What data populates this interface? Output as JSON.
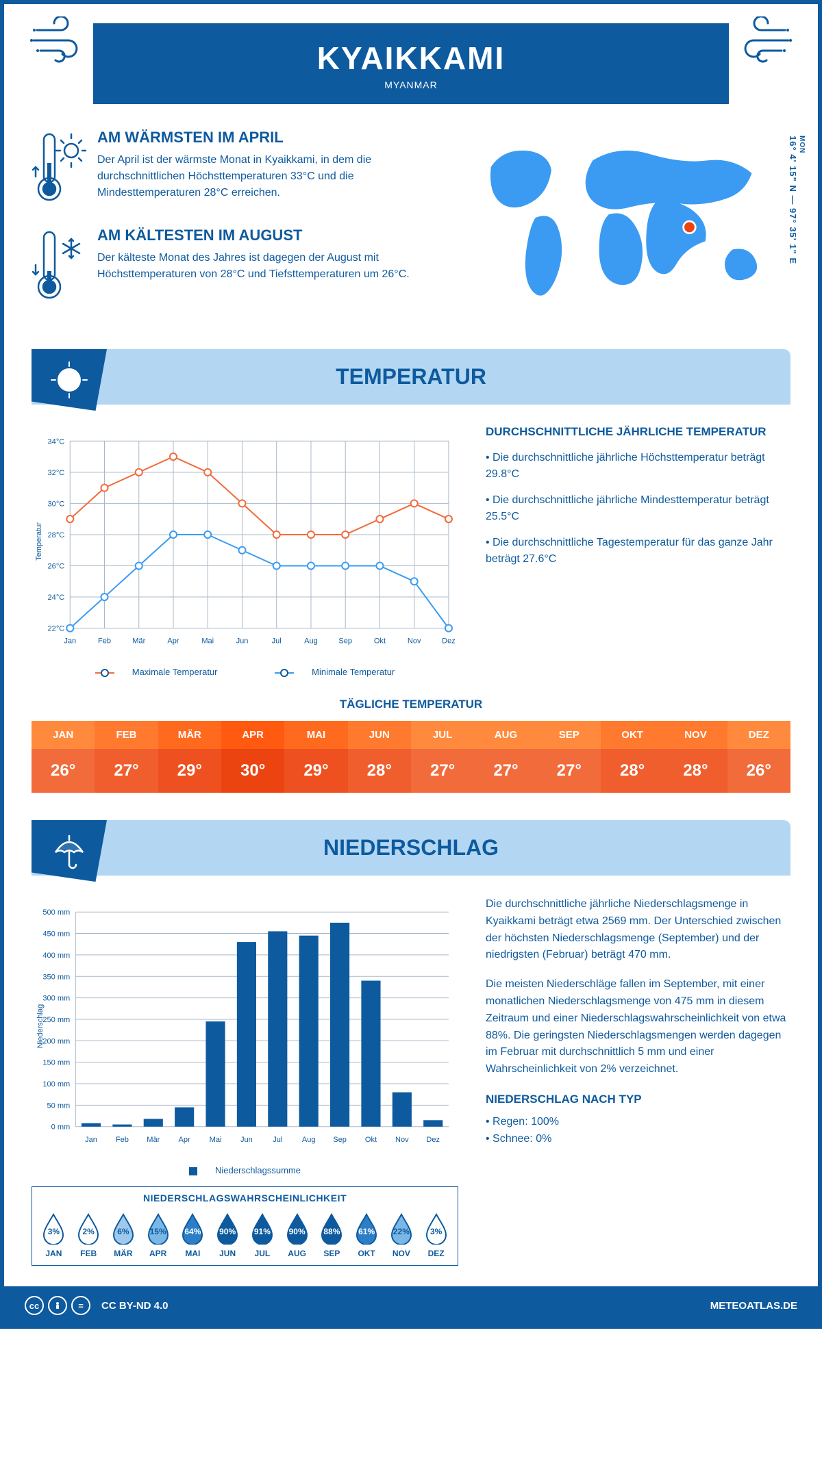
{
  "colors": {
    "brand": "#0e5a9e",
    "lightBlue": "#b3d7f2",
    "midBlue": "#3b9bf2",
    "orange": "#f26b3b",
    "white": "#ffffff",
    "grid": "#a9b8c9"
  },
  "header": {
    "title": "KYAIKKAMI",
    "subtitle": "MYANMAR"
  },
  "coords": {
    "text": "16° 4' 15\" N — 97° 35' 1\" E",
    "label": "MON"
  },
  "facts": {
    "warm": {
      "title": "AM WÄRMSTEN IM APRIL",
      "body": "Der April ist der wärmste Monat in Kyaikkami, in dem die durchschnittlichen Höchsttemperaturen 33°C und die Mindesttemperaturen 28°C erreichen."
    },
    "cold": {
      "title": "AM KÄLTESTEN IM AUGUST",
      "body": "Der kälteste Monat des Jahres ist dagegen der August mit Höchsttemperaturen von 28°C und Tiefsttemperaturen um 26°C."
    }
  },
  "temperature": {
    "sectionTitle": "TEMPERATUR",
    "descTitle": "DURCHSCHNITTLICHE JÄHRLICHE TEMPERATUR",
    "desc1": "• Die durchschnittliche jährliche Höchsttemperatur beträgt 29.8°C",
    "desc2": "• Die durchschnittliche jährliche Mindesttemperatur beträgt 25.5°C",
    "desc3": "• Die durchschnittliche Tagestemperatur für das ganze Jahr beträgt 27.6°C",
    "chart": {
      "months": [
        "Jan",
        "Feb",
        "Mär",
        "Apr",
        "Mai",
        "Jun",
        "Jul",
        "Aug",
        "Sep",
        "Okt",
        "Nov",
        "Dez"
      ],
      "max": [
        29,
        31,
        32,
        33,
        32,
        30,
        28,
        28,
        28,
        29,
        30,
        29
      ],
      "min": [
        22,
        24,
        26,
        28,
        28,
        27,
        26,
        26,
        26,
        26,
        25,
        22
      ],
      "ylim": [
        22,
        34
      ],
      "ystep": 2,
      "ylabel": "Temperatur",
      "maxLabel": "Maximale Temperatur",
      "minLabel": "Minimale Temperatur",
      "maxColor": "#f26b3b",
      "minColor": "#3b9bf2",
      "gridColor": "#a9b8c9",
      "textColor": "#0e5a9e",
      "lineWidth": 2,
      "markerSize": 5
    },
    "dailyTitle": "TÄGLICHE TEMPERATUR",
    "daily": {
      "months": [
        "JAN",
        "FEB",
        "MÄR",
        "APR",
        "MAI",
        "JUN",
        "JUL",
        "AUG",
        "SEP",
        "OKT",
        "NOV",
        "DEZ"
      ],
      "values": [
        "26°",
        "27°",
        "29°",
        "30°",
        "29°",
        "28°",
        "27°",
        "27°",
        "27°",
        "28°",
        "28°",
        "26°"
      ],
      "headerColors": [
        "#ff8a3d",
        "#ff7a2e",
        "#ff6a1f",
        "#ff5a10",
        "#ff6a1f",
        "#ff7a2e",
        "#ff8a3d",
        "#ff8a3d",
        "#ff8a3d",
        "#ff7a2e",
        "#ff7a2e",
        "#ff8a3d"
      ],
      "valueColors": [
        "#f26b3b",
        "#f05e2d",
        "#ee511f",
        "#ec4411",
        "#ee511f",
        "#f05e2d",
        "#f26b3b",
        "#f26b3b",
        "#f26b3b",
        "#f05e2d",
        "#f05e2d",
        "#f26b3b"
      ]
    }
  },
  "precipitation": {
    "sectionTitle": "NIEDERSCHLAG",
    "chart": {
      "months": [
        "Jan",
        "Feb",
        "Mär",
        "Apr",
        "Mai",
        "Jun",
        "Jul",
        "Aug",
        "Sep",
        "Okt",
        "Nov",
        "Dez"
      ],
      "values": [
        8,
        5,
        18,
        45,
        245,
        430,
        455,
        445,
        475,
        340,
        80,
        15
      ],
      "ylim": [
        0,
        500
      ],
      "ystep": 50,
      "ylabel": "Niederschlag",
      "barColor": "#0e5a9e",
      "gridColor": "#a9b8c9",
      "textColor": "#0e5a9e",
      "unitSuffix": " mm",
      "legendLabel": "Niederschlagssumme",
      "barWidth": 0.62
    },
    "desc1": "Die durchschnittliche jährliche Niederschlagsmenge in Kyaikkami beträgt etwa 2569 mm. Der Unterschied zwischen der höchsten Niederschlagsmenge (September) und der niedrigsten (Februar) beträgt 470 mm.",
    "desc2": "Die meisten Niederschläge fallen im September, mit einer monatlichen Niederschlagsmenge von 475 mm in diesem Zeitraum und einer Niederschlagswahrscheinlichkeit von etwa 88%. Die geringsten Niederschlagsmengen werden dagegen im Februar mit durchschnittlich 5 mm und einer Wahrscheinlichkeit von 2% verzeichnet.",
    "typeTitle": "NIEDERSCHLAG NACH TYP",
    "typeRain": "• Regen: 100%",
    "typeSnow": "• Schnee: 0%",
    "probTitle": "NIEDERSCHLAGSWAHRSCHEINLICHKEIT",
    "probability": {
      "months": [
        "JAN",
        "FEB",
        "MÄR",
        "APR",
        "MAI",
        "JUN",
        "JUL",
        "AUG",
        "SEP",
        "OKT",
        "NOV",
        "DEZ"
      ],
      "values": [
        "3%",
        "2%",
        "6%",
        "15%",
        "64%",
        "90%",
        "91%",
        "90%",
        "88%",
        "61%",
        "22%",
        "3%"
      ],
      "fillColors": [
        "#ffffff",
        "#ffffff",
        "#9ec9ec",
        "#7ab7e6",
        "#2c7fc7",
        "#0e5a9e",
        "#0e5a9e",
        "#0e5a9e",
        "#0e5a9e",
        "#2c7fc7",
        "#7ab7e6",
        "#ffffff"
      ],
      "textColors": [
        "#0e5a9e",
        "#0e5a9e",
        "#0e5a9e",
        "#0e5a9e",
        "#ffffff",
        "#ffffff",
        "#ffffff",
        "#ffffff",
        "#ffffff",
        "#ffffff",
        "#0e5a9e",
        "#0e5a9e"
      ]
    }
  },
  "footer": {
    "license": "CC BY-ND 4.0",
    "site": "METEOATLAS.DE"
  }
}
